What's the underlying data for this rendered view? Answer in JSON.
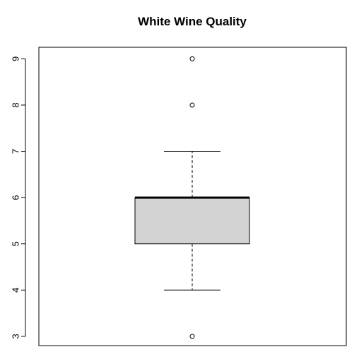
{
  "chart_data": {
    "type": "boxplot",
    "title": "White Wine Quality",
    "xlabel": "",
    "ylabel": "",
    "ylim": [
      2.8,
      9.25
    ],
    "yticks": [
      3,
      4,
      5,
      6,
      7,
      8,
      9
    ],
    "ytick_labels": [
      "3",
      "4",
      "5",
      "6",
      "7",
      "8",
      "9"
    ],
    "grid": false,
    "box": {
      "whisker_low": 4,
      "q1": 5,
      "median": 6,
      "q3": 6,
      "whisker_high": 7
    },
    "outliers": [
      3,
      8,
      9
    ],
    "colors": {
      "box_fill": "#d3d3d3",
      "stroke": "#000000"
    }
  }
}
